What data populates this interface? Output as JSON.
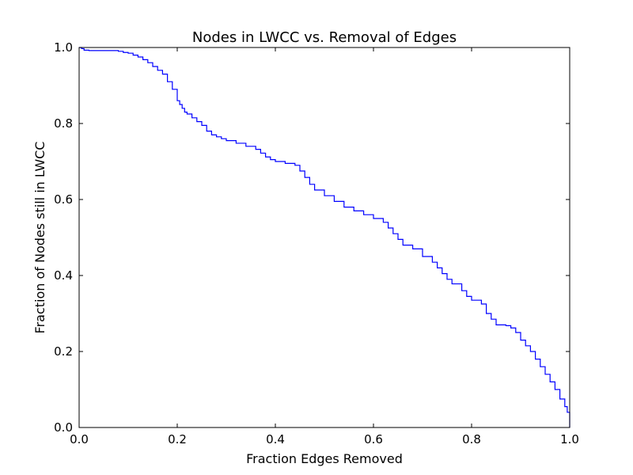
{
  "chart_data": {
    "type": "line",
    "title": "Nodes in LWCC vs. Removal of Edges",
    "xlabel": "Fraction Edges Removed",
    "ylabel": "Fraction of Nodes still in LWCC",
    "xlim": [
      0.0,
      1.0
    ],
    "ylim": [
      0.0,
      1.0
    ],
    "xticks": [
      "0.0",
      "0.2",
      "0.4",
      "0.6",
      "0.8",
      "1.0"
    ],
    "yticks": [
      "0.0",
      "0.2",
      "0.4",
      "0.6",
      "0.8",
      "1.0"
    ],
    "grid": false,
    "line_color": "#0000ff",
    "series": [
      {
        "x": [
          0.0,
          0.005,
          0.01,
          0.02,
          0.04,
          0.06,
          0.08,
          0.09,
          0.1,
          0.11,
          0.12,
          0.13,
          0.14,
          0.15,
          0.16,
          0.17,
          0.18,
          0.19,
          0.2,
          0.205,
          0.21,
          0.215,
          0.22,
          0.23,
          0.24,
          0.25,
          0.26,
          0.27,
          0.28,
          0.29,
          0.3,
          0.32,
          0.34,
          0.36,
          0.37,
          0.38,
          0.39,
          0.4,
          0.42,
          0.44,
          0.45,
          0.46,
          0.47,
          0.48,
          0.5,
          0.52,
          0.54,
          0.56,
          0.58,
          0.6,
          0.62,
          0.63,
          0.64,
          0.65,
          0.66,
          0.68,
          0.7,
          0.72,
          0.73,
          0.74,
          0.75,
          0.76,
          0.78,
          0.79,
          0.8,
          0.82,
          0.83,
          0.84,
          0.85,
          0.87,
          0.88,
          0.89,
          0.9,
          0.91,
          0.92,
          0.93,
          0.94,
          0.95,
          0.96,
          0.97,
          0.98,
          0.99,
          0.995,
          1.0
        ],
        "y": [
          1.0,
          0.997,
          0.993,
          0.992,
          0.992,
          0.992,
          0.99,
          0.987,
          0.985,
          0.98,
          0.975,
          0.968,
          0.96,
          0.95,
          0.94,
          0.93,
          0.91,
          0.89,
          0.86,
          0.85,
          0.84,
          0.83,
          0.825,
          0.815,
          0.805,
          0.795,
          0.78,
          0.77,
          0.765,
          0.76,
          0.755,
          0.748,
          0.74,
          0.732,
          0.722,
          0.712,
          0.705,
          0.7,
          0.695,
          0.69,
          0.675,
          0.658,
          0.64,
          0.625,
          0.61,
          0.595,
          0.58,
          0.57,
          0.56,
          0.55,
          0.54,
          0.525,
          0.51,
          0.495,
          0.48,
          0.47,
          0.45,
          0.435,
          0.42,
          0.405,
          0.39,
          0.378,
          0.36,
          0.345,
          0.335,
          0.325,
          0.3,
          0.285,
          0.27,
          0.268,
          0.262,
          0.25,
          0.23,
          0.215,
          0.2,
          0.18,
          0.16,
          0.14,
          0.12,
          0.1,
          0.075,
          0.055,
          0.04,
          0.0
        ]
      }
    ]
  }
}
